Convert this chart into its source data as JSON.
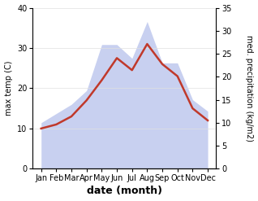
{
  "months": [
    "Jan",
    "Feb",
    "Mar",
    "Apr",
    "May",
    "Jun",
    "Jul",
    "Aug",
    "Sep",
    "Oct",
    "Nov",
    "Dec"
  ],
  "temp_max": [
    10.0,
    11.0,
    13.0,
    17.0,
    22.0,
    27.5,
    24.5,
    31.0,
    26.0,
    23.0,
    15.0,
    12.0
  ],
  "precip": [
    10.0,
    12.0,
    14.0,
    17.0,
    27.0,
    27.0,
    24.0,
    32.0,
    23.0,
    23.0,
    15.0,
    12.5
  ],
  "temp_color": "#c0392b",
  "precip_fill_color": "#c8d0f0",
  "temp_ylim": [
    0,
    40
  ],
  "precip_ylim": [
    0,
    35
  ],
  "temp_yticks": [
    0,
    10,
    20,
    30,
    40
  ],
  "precip_yticks": [
    0,
    5,
    10,
    15,
    20,
    25,
    30,
    35
  ],
  "xlabel": "date (month)",
  "ylabel_left": "max temp (C)",
  "ylabel_right": "med. precipitation (kg/m2)",
  "bg_color": "#ffffff",
  "label_fontsize": 8,
  "tick_fontsize": 7
}
